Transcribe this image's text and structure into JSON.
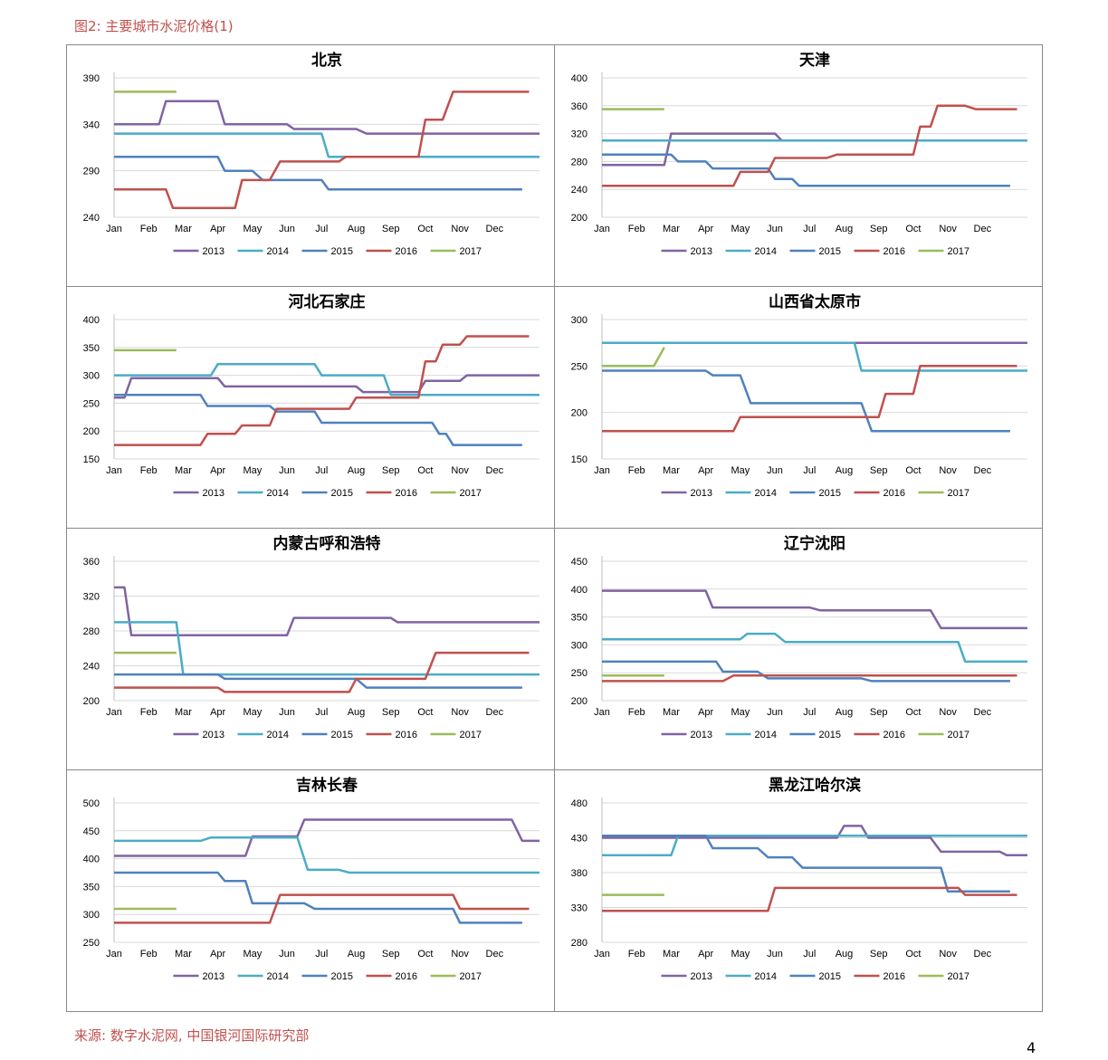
{
  "figure_title": "图2: 主要城市水泥价格(1)",
  "source": "来源: 数字水泥网, 中国银河国际研究部",
  "page_number": "4",
  "colors": {
    "2013": "#8064a2",
    "2014": "#4bacc6",
    "2015": "#4f81bd",
    "2016": "#c0504d",
    "2017": "#9bbb59",
    "accent": "#c0504d"
  },
  "months": [
    "Jan",
    "Feb",
    "Mar",
    "Apr",
    "May",
    "Jun",
    "Jul",
    "Aug",
    "Sep",
    "Oct",
    "Nov",
    "Dec"
  ],
  "chart_data": [
    {
      "type": "line",
      "title": "北京",
      "ylim": [
        240,
        390
      ],
      "yticks": [
        240,
        290,
        340,
        390
      ],
      "series": [
        {
          "name": "2013",
          "x": [
            0,
            1.3,
            1.5,
            3,
            3.2,
            5,
            5.2,
            7,
            7.3,
            12.3
          ],
          "y": [
            340,
            340,
            365,
            365,
            340,
            340,
            335,
            335,
            330,
            330
          ]
        },
        {
          "name": "2014",
          "x": [
            0,
            6,
            6.2,
            12.3
          ],
          "y": [
            330,
            330,
            305,
            305
          ]
        },
        {
          "name": "2015",
          "x": [
            0,
            3,
            3.2,
            4,
            4.3,
            6,
            6.2,
            11.8
          ],
          "y": [
            305,
            305,
            290,
            290,
            280,
            280,
            270,
            270
          ]
        },
        {
          "name": "2016",
          "x": [
            0,
            1.5,
            1.7,
            3.5,
            3.7,
            4.5,
            4.8,
            6.5,
            6.7,
            8.8,
            9,
            9.5,
            9.8,
            12
          ],
          "y": [
            270,
            270,
            250,
            250,
            280,
            280,
            300,
            300,
            305,
            305,
            345,
            345,
            375,
            375
          ]
        },
        {
          "name": "2017",
          "x": [
            0,
            1.8
          ],
          "y": [
            375,
            375
          ]
        }
      ]
    },
    {
      "type": "line",
      "title": "天津",
      "ylim": [
        200,
        400
      ],
      "yticks": [
        200,
        240,
        280,
        320,
        360,
        400
      ],
      "series": [
        {
          "name": "2013",
          "x": [
            0,
            1.8,
            2,
            5,
            5.2,
            12.3
          ],
          "y": [
            275,
            275,
            320,
            320,
            310,
            310
          ]
        },
        {
          "name": "2014",
          "x": [
            0,
            12.3
          ],
          "y": [
            310,
            310
          ]
        },
        {
          "name": "2015",
          "x": [
            0,
            2,
            2.2,
            3,
            3.2,
            4.8,
            5,
            5.5,
            5.7,
            11.8
          ],
          "y": [
            290,
            290,
            280,
            280,
            270,
            270,
            255,
            255,
            245,
            245
          ]
        },
        {
          "name": "2016",
          "x": [
            0,
            3.8,
            4,
            4.8,
            5,
            6.5,
            6.8,
            9,
            9.2,
            9.5,
            9.7,
            10.5,
            10.8,
            12
          ],
          "y": [
            245,
            245,
            265,
            265,
            285,
            285,
            290,
            290,
            330,
            330,
            360,
            360,
            355,
            355
          ]
        },
        {
          "name": "2017",
          "x": [
            0,
            1.8
          ],
          "y": [
            355,
            355
          ]
        }
      ]
    },
    {
      "type": "line",
      "title": "河北石家庄",
      "ylim": [
        150,
        400
      ],
      "yticks": [
        150,
        200,
        250,
        300,
        350,
        400
      ],
      "series": [
        {
          "name": "2013",
          "x": [
            0,
            0.3,
            0.5,
            3,
            3.2,
            7,
            7.2,
            8.8,
            9,
            10,
            10.2,
            12.3
          ],
          "y": [
            260,
            260,
            295,
            295,
            280,
            280,
            270,
            270,
            290,
            290,
            300,
            300
          ]
        },
        {
          "name": "2014",
          "x": [
            0,
            2.8,
            3,
            5.8,
            6,
            7.8,
            8,
            12.3
          ],
          "y": [
            300,
            300,
            320,
            320,
            300,
            300,
            265,
            265
          ]
        },
        {
          "name": "2015",
          "x": [
            0,
            2.5,
            2.7,
            4.5,
            4.7,
            5.8,
            6,
            9.2,
            9.4,
            9.6,
            9.8,
            11.8
          ],
          "y": [
            265,
            265,
            245,
            245,
            235,
            235,
            215,
            215,
            195,
            195,
            175,
            175
          ]
        },
        {
          "name": "2016",
          "x": [
            0,
            2.5,
            2.7,
            3.5,
            3.7,
            4.5,
            4.7,
            6.8,
            7,
            8.8,
            9,
            9.3,
            9.5,
            10,
            10.2,
            12
          ],
          "y": [
            175,
            175,
            195,
            195,
            210,
            210,
            240,
            240,
            260,
            260,
            325,
            325,
            355,
            355,
            370,
            370
          ]
        },
        {
          "name": "2017",
          "x": [
            0,
            1.8
          ],
          "y": [
            345,
            345
          ]
        }
      ]
    },
    {
      "type": "line",
      "title": "山西省太原市",
      "ylim": [
        150,
        300
      ],
      "yticks": [
        150,
        200,
        250,
        300
      ],
      "series": [
        {
          "name": "2013",
          "x": [
            0,
            12.3
          ],
          "y": [
            275,
            275
          ]
        },
        {
          "name": "2014",
          "x": [
            0,
            7.3,
            7.5,
            12.3
          ],
          "y": [
            275,
            275,
            245,
            245
          ]
        },
        {
          "name": "2015",
          "x": [
            0,
            3,
            3.2,
            4,
            4.3,
            7.5,
            7.8,
            11.8
          ],
          "y": [
            245,
            245,
            240,
            240,
            210,
            210,
            180,
            180
          ]
        },
        {
          "name": "2016",
          "x": [
            0,
            3.8,
            4,
            8,
            8.2,
            9,
            9.2,
            12
          ],
          "y": [
            180,
            180,
            195,
            195,
            220,
            220,
            250,
            250
          ]
        },
        {
          "name": "2017",
          "x": [
            0,
            1.5,
            1.8
          ],
          "y": [
            250,
            250,
            270
          ]
        }
      ]
    },
    {
      "type": "line",
      "title": "内蒙古呼和浩特",
      "ylim": [
        200,
        360
      ],
      "yticks": [
        200,
        240,
        280,
        320,
        360
      ],
      "series": [
        {
          "name": "2013",
          "x": [
            0,
            0.3,
            0.5,
            5,
            5.2,
            8,
            8.2,
            12.3
          ],
          "y": [
            330,
            330,
            275,
            275,
            295,
            295,
            290,
            290
          ]
        },
        {
          "name": "2014",
          "x": [
            0,
            1.8,
            2,
            12.3
          ],
          "y": [
            290,
            290,
            230,
            230
          ]
        },
        {
          "name": "2015",
          "x": [
            0,
            3,
            3.2,
            7,
            7.3,
            11.8
          ],
          "y": [
            230,
            230,
            225,
            225,
            215,
            215
          ]
        },
        {
          "name": "2016",
          "x": [
            0,
            3,
            3.2,
            6.8,
            7,
            9,
            9.3,
            12
          ],
          "y": [
            215,
            215,
            210,
            210,
            225,
            225,
            255,
            255
          ]
        },
        {
          "name": "2017",
          "x": [
            0,
            1.8
          ],
          "y": [
            255,
            255
          ]
        }
      ]
    },
    {
      "type": "line",
      "title": "辽宁沈阳",
      "ylim": [
        200,
        450
      ],
      "yticks": [
        200,
        250,
        300,
        350,
        400,
        450
      ],
      "series": [
        {
          "name": "2013",
          "x": [
            0,
            3,
            3.2,
            6,
            6.3,
            9.5,
            9.8,
            12.3
          ],
          "y": [
            397,
            397,
            367,
            367,
            362,
            362,
            330,
            330
          ]
        },
        {
          "name": "2014",
          "x": [
            0,
            4,
            4.2,
            5,
            5.3,
            10.3,
            10.5,
            12.3
          ],
          "y": [
            310,
            310,
            320,
            320,
            305,
            305,
            270,
            270
          ]
        },
        {
          "name": "2015",
          "x": [
            0,
            3.3,
            3.5,
            4.5,
            4.8,
            7.5,
            7.8,
            11.8
          ],
          "y": [
            270,
            270,
            252,
            252,
            240,
            240,
            235,
            235
          ]
        },
        {
          "name": "2016",
          "x": [
            0,
            3.5,
            3.8,
            12
          ],
          "y": [
            235,
            235,
            245,
            245
          ]
        },
        {
          "name": "2017",
          "x": [
            0,
            1.8
          ],
          "y": [
            245,
            245
          ]
        }
      ]
    },
    {
      "type": "line",
      "title": "吉林长春",
      "ylim": [
        250,
        500
      ],
      "yticks": [
        250,
        300,
        350,
        400,
        450,
        500
      ],
      "series": [
        {
          "name": "2013",
          "x": [
            0,
            3.8,
            4,
            5.3,
            5.5,
            11.5,
            11.8,
            12.3
          ],
          "y": [
            405,
            405,
            440,
            440,
            470,
            470,
            432,
            432
          ]
        },
        {
          "name": "2014",
          "x": [
            0,
            2.5,
            2.8,
            5.3,
            5.6,
            6.5,
            6.8,
            12.3
          ],
          "y": [
            432,
            432,
            438,
            438,
            380,
            380,
            375,
            375
          ]
        },
        {
          "name": "2015",
          "x": [
            0,
            3,
            3.2,
            3.8,
            4,
            5.5,
            5.8,
            9.8,
            10,
            11.8
          ],
          "y": [
            375,
            375,
            360,
            360,
            320,
            320,
            310,
            310,
            285,
            285
          ]
        },
        {
          "name": "2016",
          "x": [
            0,
            4.5,
            4.8,
            9.8,
            10,
            12
          ],
          "y": [
            285,
            285,
            335,
            335,
            310,
            310
          ]
        },
        {
          "name": "2017",
          "x": [
            0,
            1.8
          ],
          "y": [
            310,
            310
          ]
        }
      ]
    },
    {
      "type": "line",
      "title": "黑龙江哈尔滨",
      "ylim": [
        280,
        480
      ],
      "yticks": [
        280,
        330,
        380,
        430,
        480
      ],
      "series": [
        {
          "name": "2013",
          "x": [
            0,
            6.8,
            7,
            7.5,
            7.7,
            9.5,
            9.8,
            11.5,
            11.7,
            12.3
          ],
          "y": [
            430,
            430,
            447,
            447,
            430,
            430,
            410,
            410,
            405,
            405
          ]
        },
        {
          "name": "2014",
          "x": [
            0,
            2,
            2.2,
            12.3
          ],
          "y": [
            405,
            405,
            433,
            433
          ]
        },
        {
          "name": "2015",
          "x": [
            0,
            3,
            3.2,
            4.5,
            4.8,
            5.5,
            5.8,
            9.8,
            10,
            11.8
          ],
          "y": [
            433,
            433,
            415,
            415,
            402,
            402,
            387,
            387,
            353,
            353
          ]
        },
        {
          "name": "2016",
          "x": [
            0,
            4.8,
            5,
            10.3,
            10.5,
            12
          ],
          "y": [
            325,
            325,
            358,
            358,
            348,
            348
          ]
        },
        {
          "name": "2017",
          "x": [
            0,
            1.8
          ],
          "y": [
            348,
            348
          ]
        }
      ]
    }
  ]
}
